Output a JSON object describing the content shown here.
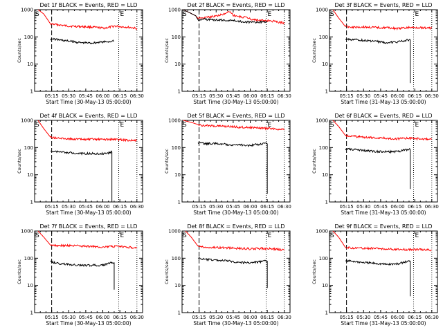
{
  "chart_data": [
    {
      "type": "line",
      "title": "Det 1f BLACK = Events, RED = LLD",
      "xlabel": "Start Time (30-May-13 05:00:00)",
      "ylabel": "Counts/sec",
      "y_scale": "log",
      "ylim": [
        1,
        1000
      ],
      "x_ticks": [
        "05:15",
        "05:30",
        "05:45",
        "06:00",
        "06:15",
        "06:30"
      ],
      "y_ticks": [
        "1",
        "10",
        "100",
        "1000"
      ],
      "markers": [
        "S",
        "E"
      ],
      "red": [
        [
          3,
          1000
        ],
        [
          8,
          700
        ],
        [
          14,
          300
        ],
        [
          20,
          280
        ],
        [
          30,
          250
        ],
        [
          40,
          240
        ],
        [
          50,
          230
        ],
        [
          60,
          210
        ],
        [
          65,
          220
        ],
        [
          70,
          250
        ],
        [
          80,
          230
        ],
        [
          85,
          220
        ],
        [
          90,
          200
        ]
      ],
      "black": [
        [
          14,
          85
        ],
        [
          20,
          80
        ],
        [
          30,
          70
        ],
        [
          40,
          62
        ],
        [
          50,
          60
        ],
        [
          60,
          65
        ],
        [
          70,
          70
        ]
      ]
    },
    {
      "type": "line",
      "title": "Det 2f BLACK = Events, RED = LLD",
      "xlabel": "Start Time (30-May-13 05:00:00)",
      "ylabel": "Counts/sec",
      "y_scale": "log",
      "ylim": [
        1,
        1000
      ],
      "x_ticks": [
        "05:15",
        "05:30",
        "05:45",
        "06:00",
        "06:15",
        "06:30"
      ],
      "y_ticks": [
        "1",
        "10",
        "100",
        "1000"
      ],
      "markers": [
        "S",
        "E"
      ],
      "red": [
        [
          1,
          1000
        ],
        [
          6,
          800
        ],
        [
          12,
          600
        ],
        [
          14,
          480
        ],
        [
          20,
          500
        ],
        [
          30,
          600
        ],
        [
          38,
          700
        ],
        [
          42,
          900
        ],
        [
          45,
          620
        ],
        [
          50,
          560
        ],
        [
          58,
          500
        ],
        [
          62,
          440
        ],
        [
          70,
          400
        ],
        [
          80,
          380
        ],
        [
          90,
          320
        ]
      ],
      "black": [
        [
          1,
          1000
        ],
        [
          6,
          800
        ],
        [
          12,
          600
        ],
        [
          14,
          430
        ],
        [
          20,
          440
        ],
        [
          30,
          420
        ],
        [
          38,
          410
        ],
        [
          45,
          400
        ],
        [
          55,
          360
        ],
        [
          62,
          340
        ],
        [
          70,
          350
        ],
        [
          75,
          360
        ]
      ]
    },
    {
      "type": "line",
      "title": "Det 3f BLACK = Events, RED = LLD",
      "xlabel": "Start Time (31-May-13 05:00:00)",
      "ylabel": "Counts/sec",
      "y_scale": "log",
      "ylim": [
        1,
        1000
      ],
      "x_ticks": [
        "05:15",
        "05:30",
        "05:45",
        "06:00",
        "06:15",
        "06:30"
      ],
      "y_ticks": [
        "1",
        "10",
        "100",
        "1000"
      ],
      "markers": [
        "S",
        "E"
      ],
      "red": [
        [
          3,
          1000
        ],
        [
          8,
          500
        ],
        [
          14,
          240
        ],
        [
          20,
          230
        ],
        [
          30,
          230
        ],
        [
          40,
          220
        ],
        [
          50,
          220
        ],
        [
          60,
          200
        ],
        [
          70,
          220
        ],
        [
          80,
          220
        ],
        [
          90,
          210
        ]
      ],
      "black": [
        [
          14,
          80
        ],
        [
          20,
          80
        ],
        [
          30,
          75
        ],
        [
          40,
          68
        ],
        [
          50,
          62
        ],
        [
          60,
          65
        ],
        [
          68,
          75
        ],
        [
          71,
          80
        ]
      ],
      "drop": {
        "x": 71,
        "y": 2
      }
    },
    {
      "type": "line",
      "title": "Det 4f BLACK = Events, RED = LLD",
      "xlabel": "Start Time (30-May-13 05:00:00)",
      "ylabel": "Counts/sec",
      "y_scale": "log",
      "ylim": [
        1,
        1000
      ],
      "x_ticks": [
        "05:15",
        "05:30",
        "05:45",
        "06:00",
        "06:15",
        "06:30"
      ],
      "y_ticks": [
        "1",
        "10",
        "100",
        "1000"
      ],
      "markers": [
        "S",
        "E"
      ],
      "red": [
        [
          3,
          1000
        ],
        [
          8,
          500
        ],
        [
          14,
          240
        ],
        [
          20,
          220
        ],
        [
          30,
          210
        ],
        [
          40,
          200
        ],
        [
          50,
          200
        ],
        [
          60,
          200
        ],
        [
          70,
          200
        ],
        [
          80,
          190
        ],
        [
          90,
          180
        ]
      ],
      "black": [
        [
          14,
          75
        ],
        [
          20,
          70
        ],
        [
          30,
          65
        ],
        [
          40,
          60
        ],
        [
          50,
          60
        ],
        [
          60,
          60
        ],
        [
          66,
          65
        ],
        [
          68,
          70
        ]
      ],
      "drop": {
        "x": 68,
        "y": 1
      }
    },
    {
      "type": "line",
      "title": "Det 5f BLACK = Events, RED = LLD",
      "xlabel": "Start Time (30-May-13 05:00:00)",
      "ylabel": "Counts/sec",
      "y_scale": "log",
      "ylim": [
        1,
        1000
      ],
      "x_ticks": [
        "05:15",
        "05:30",
        "05:45",
        "06:00",
        "06:15",
        "06:30"
      ],
      "y_ticks": [
        "1",
        "10",
        "100",
        "1000"
      ],
      "markers": [
        "S",
        "E"
      ],
      "red": [
        [
          1,
          1000
        ],
        [
          10,
          800
        ],
        [
          14,
          700
        ],
        [
          20,
          640
        ],
        [
          30,
          620
        ],
        [
          40,
          600
        ],
        [
          50,
          560
        ],
        [
          60,
          550
        ],
        [
          70,
          520
        ],
        [
          80,
          500
        ],
        [
          90,
          450
        ]
      ],
      "black": [
        [
          14,
          150
        ],
        [
          20,
          140
        ],
        [
          30,
          140
        ],
        [
          40,
          130
        ],
        [
          50,
          125
        ],
        [
          60,
          120
        ],
        [
          70,
          135
        ],
        [
          75,
          140
        ]
      ],
      "drop": {
        "x": 75,
        "y": 2
      }
    },
    {
      "type": "line",
      "title": "Det 6f BLACK = Events, RED = LLD",
      "xlabel": "Start Time (31-May-13 05:00:00)",
      "ylabel": "Counts/sec",
      "y_scale": "log",
      "ylim": [
        1,
        1000
      ],
      "x_ticks": [
        "05:15",
        "05:30",
        "05:45",
        "06:00",
        "06:15",
        "06:30"
      ],
      "y_ticks": [
        "1",
        "10",
        "100",
        "1000"
      ],
      "markers": [
        "S",
        "E"
      ],
      "red": [
        [
          3,
          1000
        ],
        [
          8,
          600
        ],
        [
          14,
          280
        ],
        [
          20,
          260
        ],
        [
          30,
          240
        ],
        [
          40,
          230
        ],
        [
          50,
          220
        ],
        [
          60,
          210
        ],
        [
          70,
          220
        ],
        [
          80,
          210
        ],
        [
          90,
          200
        ]
      ],
      "black": [
        [
          14,
          90
        ],
        [
          20,
          85
        ],
        [
          30,
          78
        ],
        [
          40,
          72
        ],
        [
          50,
          70
        ],
        [
          60,
          72
        ],
        [
          66,
          80
        ],
        [
          71,
          85
        ]
      ],
      "drop": {
        "x": 71,
        "y": 3
      }
    },
    {
      "type": "line",
      "title": "Det 7f BLACK = Events, RED = LLD",
      "xlabel": "Start Time (30-May-13 05:00:00)",
      "ylabel": "Counts/sec",
      "y_scale": "log",
      "ylim": [
        1,
        1000
      ],
      "x_ticks": [
        "05:15",
        "05:30",
        "05:45",
        "06:00",
        "06:15",
        "06:30"
      ],
      "y_ticks": [
        "1",
        "10",
        "100",
        "1000"
      ],
      "markers": [
        "S",
        "E"
      ],
      "red": [
        [
          3,
          1000
        ],
        [
          8,
          600
        ],
        [
          14,
          300
        ],
        [
          20,
          290
        ],
        [
          30,
          290
        ],
        [
          40,
          280
        ],
        [
          50,
          270
        ],
        [
          60,
          260
        ],
        [
          70,
          270
        ],
        [
          80,
          260
        ],
        [
          90,
          240
        ]
      ],
      "black": [
        [
          14,
          75
        ],
        [
          20,
          65
        ],
        [
          30,
          60
        ],
        [
          40,
          55
        ],
        [
          50,
          55
        ],
        [
          60,
          55
        ],
        [
          66,
          65
        ],
        [
          70,
          70
        ]
      ],
      "drop": {
        "x": 70,
        "y": 7
      }
    },
    {
      "type": "line",
      "title": "Det 8f BLACK = Events, RED = LLD",
      "xlabel": "Start Time (30-May-13 05:00:00)",
      "ylabel": "Counts/sec",
      "y_scale": "log",
      "ylim": [
        1,
        1000
      ],
      "x_ticks": [
        "05:15",
        "05:30",
        "05:45",
        "06:00",
        "06:15",
        "06:30"
      ],
      "y_ticks": [
        "1",
        "10",
        "100",
        "1000"
      ],
      "markers": [
        "S",
        "E"
      ],
      "red": [
        [
          3,
          1000
        ],
        [
          8,
          600
        ],
        [
          14,
          280
        ],
        [
          20,
          250
        ],
        [
          30,
          250
        ],
        [
          40,
          240
        ],
        [
          50,
          230
        ],
        [
          60,
          220
        ],
        [
          70,
          230
        ],
        [
          80,
          220
        ],
        [
          90,
          200
        ]
      ],
      "black": [
        [
          14,
          100
        ],
        [
          20,
          90
        ],
        [
          30,
          85
        ],
        [
          40,
          80
        ],
        [
          50,
          70
        ],
        [
          60,
          68
        ],
        [
          70,
          75
        ],
        [
          75,
          80
        ]
      ],
      "drop": {
        "x": 75,
        "y": 8
      }
    },
    {
      "type": "line",
      "title": "Det 9f BLACK = Events, RED = LLD",
      "xlabel": "Start Time (31-May-13 05:00:00)",
      "ylabel": "Counts/sec",
      "y_scale": "log",
      "ylim": [
        1,
        1000
      ],
      "x_ticks": [
        "05:15",
        "05:30",
        "05:45",
        "06:00",
        "06:15",
        "06:30"
      ],
      "y_ticks": [
        "1",
        "10",
        "100",
        "1000"
      ],
      "markers": [
        "S",
        "E"
      ],
      "red": [
        [
          3,
          1000
        ],
        [
          8,
          600
        ],
        [
          14,
          250
        ],
        [
          20,
          240
        ],
        [
          30,
          230
        ],
        [
          40,
          230
        ],
        [
          50,
          220
        ],
        [
          60,
          210
        ],
        [
          70,
          210
        ],
        [
          80,
          210
        ],
        [
          90,
          200
        ]
      ],
      "black": [
        [
          14,
          80
        ],
        [
          20,
          78
        ],
        [
          30,
          70
        ],
        [
          40,
          65
        ],
        [
          50,
          60
        ],
        [
          60,
          62
        ],
        [
          66,
          72
        ],
        [
          71,
          80
        ]
      ],
      "drop": {
        "x": 71,
        "y": 4
      }
    }
  ]
}
